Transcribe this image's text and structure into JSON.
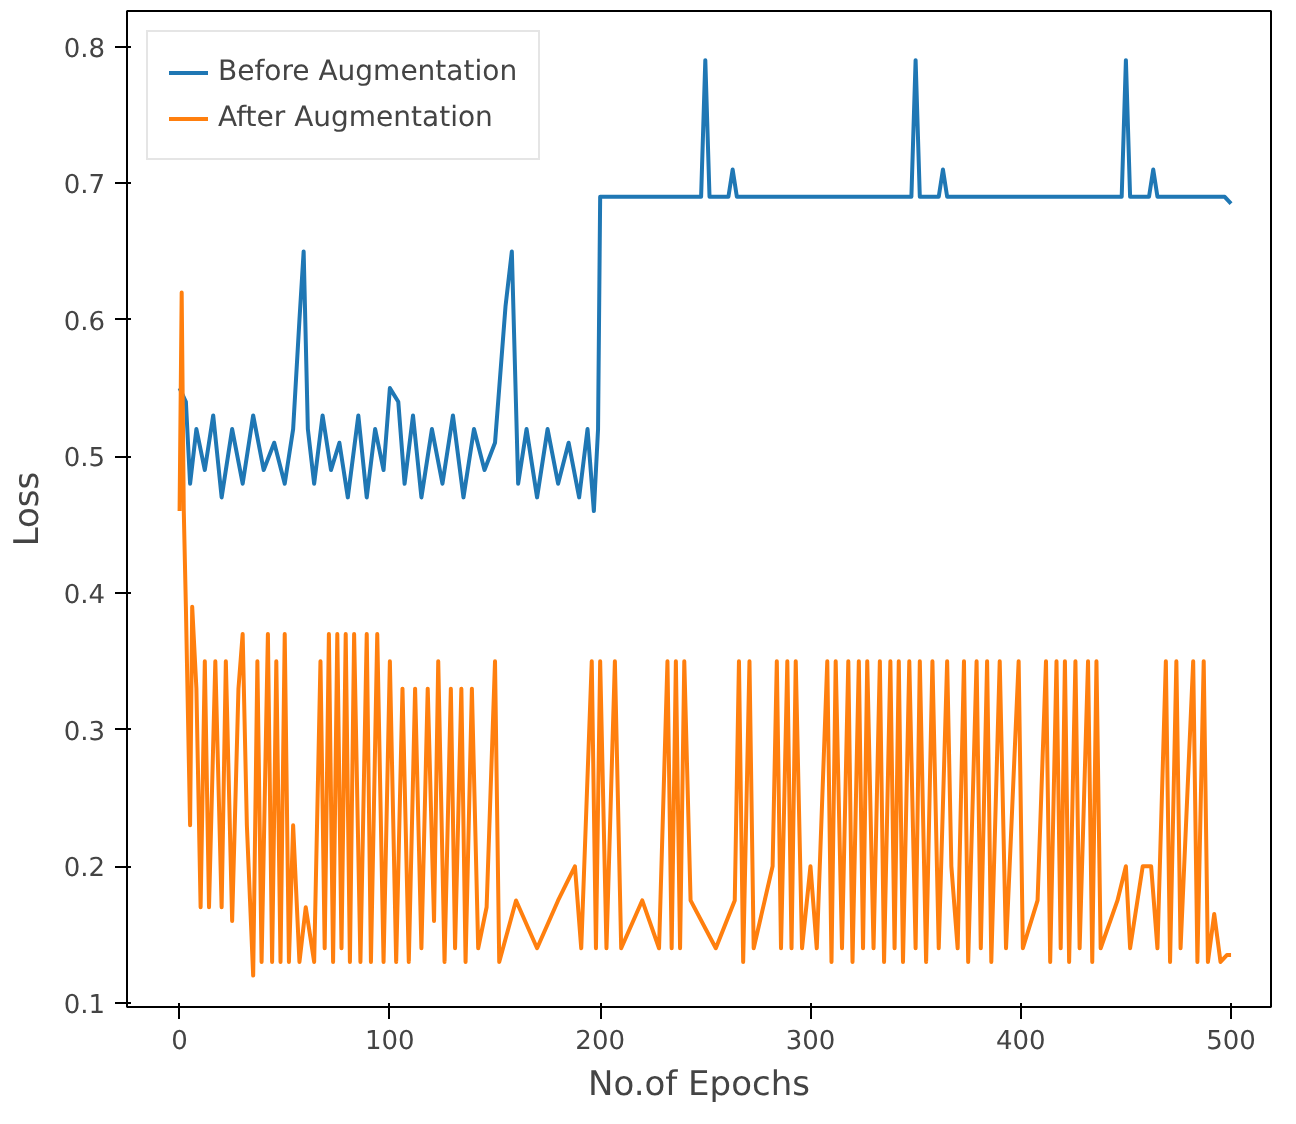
{
  "chart_data": {
    "type": "line",
    "xlabel": "No.of Epochs",
    "ylabel": "Loss",
    "xlim": [
      -25,
      519
    ],
    "ylim": [
      0.097,
      0.826
    ],
    "xticks": [
      0,
      100,
      200,
      300,
      400,
      500
    ],
    "yticks": [
      0.1,
      0.2,
      0.3,
      0.4,
      0.5,
      0.6,
      0.7,
      0.8
    ],
    "grid": false,
    "legend": "top left",
    "line_style": "solid",
    "series": [
      {
        "name": "Before Augmentation",
        "color": "#1f77b4",
        "x": [
          0,
          3,
          5,
          8,
          12,
          16,
          20,
          25,
          30,
          35,
          40,
          45,
          50,
          54,
          57,
          59,
          61,
          64,
          68,
          72,
          76,
          80,
          85,
          89,
          93,
          97,
          100,
          104,
          107,
          111,
          115,
          120,
          125,
          130,
          135,
          140,
          145,
          150,
          155,
          158,
          161,
          165,
          170,
          175,
          180,
          185,
          190,
          194,
          197,
          199,
          200,
          248,
          250,
          252,
          261,
          263,
          265,
          300,
          348,
          350,
          352,
          361,
          363,
          365,
          448,
          450,
          452,
          461,
          463,
          465,
          497,
          500
        ],
        "values": [
          0.55,
          0.54,
          0.48,
          0.52,
          0.49,
          0.53,
          0.47,
          0.52,
          0.48,
          0.53,
          0.49,
          0.51,
          0.48,
          0.52,
          0.6,
          0.65,
          0.52,
          0.48,
          0.53,
          0.49,
          0.51,
          0.47,
          0.53,
          0.47,
          0.52,
          0.49,
          0.55,
          0.54,
          0.48,
          0.53,
          0.47,
          0.52,
          0.48,
          0.53,
          0.47,
          0.52,
          0.49,
          0.51,
          0.61,
          0.65,
          0.48,
          0.52,
          0.47,
          0.52,
          0.48,
          0.51,
          0.47,
          0.52,
          0.46,
          0.52,
          0.69,
          0.69,
          0.79,
          0.69,
          0.69,
          0.71,
          0.69,
          0.69,
          0.69,
          0.79,
          0.69,
          0.69,
          0.71,
          0.69,
          0.69,
          0.79,
          0.69,
          0.69,
          0.71,
          0.69,
          0.69,
          0.685
        ]
      },
      {
        "name": "After Augmentation",
        "color": "#ff7f0e",
        "x": [
          0,
          1,
          2,
          3,
          5,
          6,
          8,
          10,
          12,
          14,
          17,
          20,
          22,
          25,
          28,
          30,
          32,
          35,
          37,
          39,
          42,
          44,
          46,
          48,
          50,
          52,
          54,
          57,
          60,
          64,
          67,
          69,
          71,
          73,
          75,
          77,
          79,
          81,
          83,
          86,
          89,
          91,
          94,
          97,
          100,
          103,
          106,
          109,
          112,
          115,
          118,
          121,
          123,
          126,
          129,
          131,
          134,
          136,
          139,
          142,
          146,
          150,
          152,
          160,
          170,
          180,
          188,
          191,
          196,
          198,
          200,
          203,
          207,
          210,
          220,
          228,
          232,
          234,
          236,
          238,
          240,
          243,
          255,
          264,
          266,
          268,
          271,
          273,
          282,
          284,
          286,
          289,
          291,
          293,
          296,
          300,
          303,
          308,
          310,
          312,
          315,
          318,
          320,
          323,
          325,
          327,
          330,
          333,
          335,
          338,
          340,
          342,
          344,
          347,
          350,
          352,
          355,
          358,
          361,
          365,
          367,
          370,
          373,
          375,
          379,
          381,
          384,
          386,
          390,
          393,
          399,
          401,
          408,
          412,
          414,
          417,
          419,
          421,
          423,
          426,
          428,
          432,
          434,
          436,
          438,
          446,
          450,
          452,
          458,
          462,
          465,
          469,
          471,
          474,
          476,
          482,
          484,
          487,
          489,
          492,
          495,
          498,
          500
        ],
        "values": [
          0.46,
          0.62,
          0.46,
          0.39,
          0.23,
          0.39,
          0.33,
          0.17,
          0.35,
          0.17,
          0.35,
          0.17,
          0.35,
          0.16,
          0.33,
          0.37,
          0.23,
          0.12,
          0.35,
          0.13,
          0.37,
          0.13,
          0.35,
          0.13,
          0.37,
          0.13,
          0.23,
          0.13,
          0.17,
          0.13,
          0.35,
          0.14,
          0.37,
          0.13,
          0.37,
          0.14,
          0.37,
          0.13,
          0.37,
          0.13,
          0.37,
          0.13,
          0.37,
          0.13,
          0.35,
          0.13,
          0.33,
          0.13,
          0.33,
          0.14,
          0.33,
          0.16,
          0.35,
          0.13,
          0.33,
          0.14,
          0.33,
          0.13,
          0.33,
          0.14,
          0.17,
          0.35,
          0.13,
          0.175,
          0.14,
          0.175,
          0.2,
          0.14,
          0.35,
          0.14,
          0.35,
          0.14,
          0.35,
          0.14,
          0.175,
          0.14,
          0.35,
          0.14,
          0.35,
          0.14,
          0.35,
          0.175,
          0.14,
          0.175,
          0.35,
          0.13,
          0.35,
          0.14,
          0.2,
          0.35,
          0.14,
          0.35,
          0.14,
          0.35,
          0.14,
          0.2,
          0.14,
          0.35,
          0.13,
          0.35,
          0.14,
          0.35,
          0.13,
          0.35,
          0.14,
          0.35,
          0.14,
          0.35,
          0.13,
          0.35,
          0.14,
          0.35,
          0.13,
          0.35,
          0.14,
          0.35,
          0.13,
          0.35,
          0.14,
          0.35,
          0.2,
          0.14,
          0.35,
          0.13,
          0.35,
          0.14,
          0.35,
          0.13,
          0.35,
          0.14,
          0.35,
          0.14,
          0.175,
          0.35,
          0.13,
          0.35,
          0.14,
          0.35,
          0.13,
          0.35,
          0.14,
          0.35,
          0.13,
          0.35,
          0.14,
          0.175,
          0.2,
          0.14,
          0.2,
          0.2,
          0.14,
          0.35,
          0.13,
          0.35,
          0.14,
          0.35,
          0.13,
          0.35,
          0.13,
          0.165,
          0.13,
          0.135,
          0.135
        ]
      }
    ]
  }
}
